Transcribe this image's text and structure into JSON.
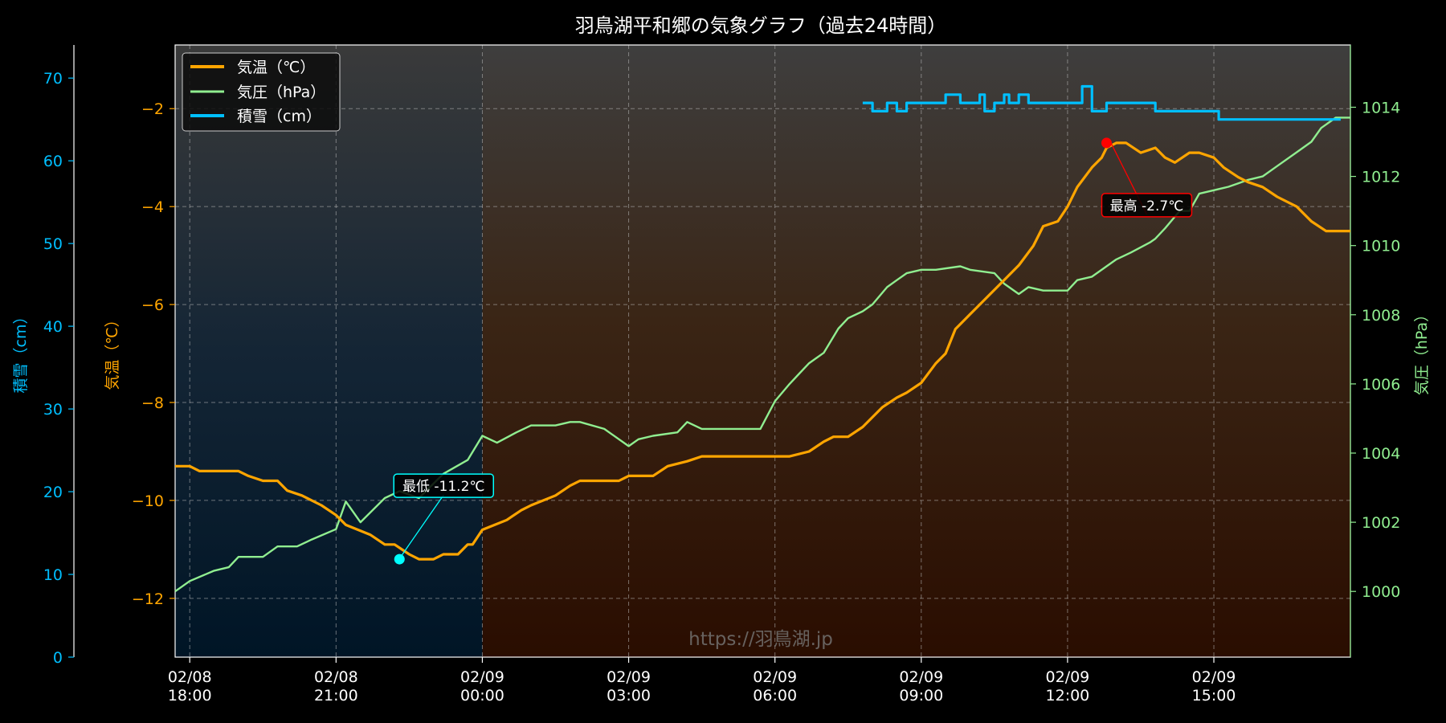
{
  "chart_data": {
    "type": "line",
    "title": "羽鳥湖平和郷の気象グラフ（過去24時間）",
    "watermark": "https://羽鳥湖.jp",
    "colors": {
      "temperature": "#ffa500",
      "pressure": "#90ee90",
      "snow": "#00bfff",
      "min_marker": "#00ffff",
      "max_marker": "#ff0000"
    },
    "x_axis": {
      "range": [
        "02/08 17:42",
        "02/09 17:48"
      ],
      "ticks": [
        {
          "t": "02/08 18:00",
          "date": "02/08",
          "time": "18:00"
        },
        {
          "t": "02/08 21:00",
          "date": "02/08",
          "time": "21:00"
        },
        {
          "t": "02/09 00:00",
          "date": "02/09",
          "time": "00:00"
        },
        {
          "t": "02/09 03:00",
          "date": "02/09",
          "time": "03:00"
        },
        {
          "t": "02/09 06:00",
          "date": "02/09",
          "time": "06:00"
        },
        {
          "t": "02/09 09:00",
          "date": "02/09",
          "time": "09:00"
        },
        {
          "t": "02/09 12:00",
          "date": "02/09",
          "time": "12:00"
        },
        {
          "t": "02/09 15:00",
          "date": "02/09",
          "time": "15:00"
        }
      ]
    },
    "night_shade_until": "02/09 00:00",
    "y_axes": {
      "temperature": {
        "label": "気温（℃）",
        "range": [
          -13.2,
          -0.7
        ],
        "ticks": [
          -12,
          -10,
          -8,
          -6,
          -4,
          -2
        ]
      },
      "pressure": {
        "label": "気圧（hPa）",
        "range": [
          998.1,
          1015.8
        ],
        "ticks": [
          1000,
          1002,
          1004,
          1006,
          1008,
          1010,
          1012,
          1014
        ]
      },
      "snow": {
        "label": "積雪（cm）",
        "range": [
          0,
          74
        ],
        "ticks": [
          0,
          10,
          20,
          30,
          40,
          50,
          60,
          70
        ]
      }
    },
    "grid": true,
    "legend": {
      "position": "top-left",
      "entries": [
        {
          "key": "temperature",
          "label": "気温（℃）"
        },
        {
          "key": "pressure",
          "label": "気圧（hPa）"
        },
        {
          "key": "snow",
          "label": "積雪（cm）"
        }
      ]
    },
    "series": [
      {
        "name": "気温（℃）",
        "axis": "temperature",
        "points": [
          [
            "02/08 17:42",
            -9.3
          ],
          [
            "02/08 18:00",
            -9.3
          ],
          [
            "02/08 18:12",
            -9.4
          ],
          [
            "02/08 18:42",
            -9.4
          ],
          [
            "02/08 19:00",
            -9.4
          ],
          [
            "02/08 19:12",
            -9.5
          ],
          [
            "02/08 19:30",
            -9.6
          ],
          [
            "02/08 19:48",
            -9.6
          ],
          [
            "02/08 20:00",
            -9.8
          ],
          [
            "02/08 20:18",
            -9.9
          ],
          [
            "02/08 20:42",
            -10.1
          ],
          [
            "02/08 21:00",
            -10.3
          ],
          [
            "02/08 21:12",
            -10.5
          ],
          [
            "02/08 21:42",
            -10.7
          ],
          [
            "02/08 22:00",
            -10.9
          ],
          [
            "02/08 22:12",
            -10.9
          ],
          [
            "02/08 22:30",
            -11.1
          ],
          [
            "02/08 22:42",
            -11.2
          ],
          [
            "02/08 23:00",
            -11.2
          ],
          [
            "02/08 23:12",
            -11.1
          ],
          [
            "02/08 23:30",
            -11.1
          ],
          [
            "02/08 23:42",
            -10.9
          ],
          [
            "02/08 23:48",
            -10.9
          ],
          [
            "02/09 00:00",
            -10.6
          ],
          [
            "02/09 00:30",
            -10.4
          ],
          [
            "02/09 00:48",
            -10.2
          ],
          [
            "02/09 01:00",
            -10.1
          ],
          [
            "02/09 01:30",
            -9.9
          ],
          [
            "02/09 01:48",
            -9.7
          ],
          [
            "02/09 02:00",
            -9.6
          ],
          [
            "02/09 02:48",
            -9.6
          ],
          [
            "02/09 03:00",
            -9.5
          ],
          [
            "02/09 03:30",
            -9.5
          ],
          [
            "02/09 03:48",
            -9.3
          ],
          [
            "02/09 04:12",
            -9.2
          ],
          [
            "02/09 04:30",
            -9.1
          ],
          [
            "02/09 05:00",
            -9.1
          ],
          [
            "02/09 05:48",
            -9.1
          ],
          [
            "02/09 06:00",
            -9.1
          ],
          [
            "02/09 06:18",
            -9.1
          ],
          [
            "02/09 06:42",
            -9.0
          ],
          [
            "02/09 07:00",
            -8.8
          ],
          [
            "02/09 07:12",
            -8.7
          ],
          [
            "02/09 07:30",
            -8.7
          ],
          [
            "02/09 07:48",
            -8.5
          ],
          [
            "02/09 08:00",
            -8.3
          ],
          [
            "02/09 08:12",
            -8.1
          ],
          [
            "02/09 08:30",
            -7.9
          ],
          [
            "02/09 08:42",
            -7.8
          ],
          [
            "02/09 09:00",
            -7.6
          ],
          [
            "02/09 09:18",
            -7.2
          ],
          [
            "02/09 09:30",
            -7.0
          ],
          [
            "02/09 09:42",
            -6.5
          ],
          [
            "02/09 09:48",
            -6.4
          ],
          [
            "02/09 10:00",
            -6.2
          ],
          [
            "02/09 10:18",
            -5.9
          ],
          [
            "02/09 10:42",
            -5.5
          ],
          [
            "02/09 11:00",
            -5.2
          ],
          [
            "02/09 11:18",
            -4.8
          ],
          [
            "02/09 11:30",
            -4.4
          ],
          [
            "02/09 11:48",
            -4.3
          ],
          [
            "02/09 12:00",
            -4.0
          ],
          [
            "02/09 12:12",
            -3.6
          ],
          [
            "02/09 12:30",
            -3.2
          ],
          [
            "02/09 12:42",
            -3.0
          ],
          [
            "02/09 12:48",
            -2.8
          ],
          [
            "02/09 13:00",
            -2.7
          ],
          [
            "02/09 13:12",
            -2.7
          ],
          [
            "02/09 13:30",
            -2.9
          ],
          [
            "02/09 13:48",
            -2.8
          ],
          [
            "02/09 14:00",
            -3.0
          ],
          [
            "02/09 14:12",
            -3.1
          ],
          [
            "02/09 14:30",
            -2.9
          ],
          [
            "02/09 14:42",
            -2.9
          ],
          [
            "02/09 15:00",
            -3.0
          ],
          [
            "02/09 15:12",
            -3.2
          ],
          [
            "02/09 15:30",
            -3.4
          ],
          [
            "02/09 15:42",
            -3.5
          ],
          [
            "02/09 16:00",
            -3.6
          ],
          [
            "02/09 16:18",
            -3.8
          ],
          [
            "02/09 16:42",
            -4.0
          ],
          [
            "02/09 17:00",
            -4.3
          ],
          [
            "02/09 17:18",
            -4.5
          ],
          [
            "02/09 17:48",
            -4.5
          ]
        ]
      },
      {
        "name": "気圧（hPa）",
        "axis": "pressure",
        "points": [
          [
            "02/08 17:42",
            1000.0
          ],
          [
            "02/08 18:00",
            1000.3
          ],
          [
            "02/08 18:30",
            1000.6
          ],
          [
            "02/08 18:48",
            1000.7
          ],
          [
            "02/08 19:00",
            1001.0
          ],
          [
            "02/08 19:30",
            1001.0
          ],
          [
            "02/08 19:48",
            1001.3
          ],
          [
            "02/08 20:12",
            1001.3
          ],
          [
            "02/08 20:30",
            1001.5
          ],
          [
            "02/08 21:00",
            1001.8
          ],
          [
            "02/08 21:12",
            1002.6
          ],
          [
            "02/08 21:30",
            1002.0
          ],
          [
            "02/08 22:00",
            1002.7
          ],
          [
            "02/08 22:18",
            1002.9
          ],
          [
            "02/08 22:42",
            1002.7
          ],
          [
            "02/08 23:12",
            1003.4
          ],
          [
            "02/08 23:42",
            1003.8
          ],
          [
            "02/09 00:00",
            1004.5
          ],
          [
            "02/09 00:18",
            1004.3
          ],
          [
            "02/09 00:42",
            1004.6
          ],
          [
            "02/09 01:00",
            1004.8
          ],
          [
            "02/09 01:30",
            1004.8
          ],
          [
            "02/09 01:48",
            1004.9
          ],
          [
            "02/09 02:00",
            1004.9
          ],
          [
            "02/09 02:30",
            1004.7
          ],
          [
            "02/09 03:00",
            1004.2
          ],
          [
            "02/09 03:12",
            1004.4
          ],
          [
            "02/09 03:30",
            1004.5
          ],
          [
            "02/09 04:00",
            1004.6
          ],
          [
            "02/09 04:12",
            1004.9
          ],
          [
            "02/09 04:30",
            1004.7
          ],
          [
            "02/09 05:00",
            1004.7
          ],
          [
            "02/09 05:42",
            1004.7
          ],
          [
            "02/09 06:00",
            1005.5
          ],
          [
            "02/09 06:18",
            1006.0
          ],
          [
            "02/09 06:30",
            1006.3
          ],
          [
            "02/09 06:42",
            1006.6
          ],
          [
            "02/09 07:00",
            1006.9
          ],
          [
            "02/09 07:18",
            1007.6
          ],
          [
            "02/09 07:30",
            1007.9
          ],
          [
            "02/09 07:48",
            1008.1
          ],
          [
            "02/09 08:00",
            1008.3
          ],
          [
            "02/09 08:18",
            1008.8
          ],
          [
            "02/09 08:30",
            1009.0
          ],
          [
            "02/09 08:42",
            1009.2
          ],
          [
            "02/09 09:00",
            1009.3
          ],
          [
            "02/09 09:18",
            1009.3
          ],
          [
            "02/09 09:48",
            1009.4
          ],
          [
            "02/09 10:00",
            1009.3
          ],
          [
            "02/09 10:30",
            1009.2
          ],
          [
            "02/09 10:42",
            1008.9
          ],
          [
            "02/09 11:00",
            1008.6
          ],
          [
            "02/09 11:12",
            1008.8
          ],
          [
            "02/09 11:30",
            1008.7
          ],
          [
            "02/09 11:48",
            1008.7
          ],
          [
            "02/09 12:00",
            1008.7
          ],
          [
            "02/09 12:12",
            1009.0
          ],
          [
            "02/09 12:30",
            1009.1
          ],
          [
            "02/09 13:00",
            1009.6
          ],
          [
            "02/09 13:18",
            1009.8
          ],
          [
            "02/09 13:42",
            1010.1
          ],
          [
            "02/09 13:48",
            1010.2
          ],
          [
            "02/09 14:00",
            1010.5
          ],
          [
            "02/09 14:18",
            1011.0
          ],
          [
            "02/09 14:30",
            1011.0
          ],
          [
            "02/09 14:42",
            1011.5
          ],
          [
            "02/09 15:00",
            1011.6
          ],
          [
            "02/09 15:18",
            1011.7
          ],
          [
            "02/09 15:30",
            1011.8
          ],
          [
            "02/09 15:42",
            1011.9
          ],
          [
            "02/09 16:00",
            1012.0
          ],
          [
            "02/09 16:18",
            1012.3
          ],
          [
            "02/09 16:42",
            1012.7
          ],
          [
            "02/09 17:00",
            1013.0
          ],
          [
            "02/09 17:12",
            1013.4
          ],
          [
            "02/09 17:30",
            1013.7
          ],
          [
            "02/09 17:48",
            1013.7
          ]
        ]
      },
      {
        "name": "積雪（cm）",
        "axis": "snow",
        "step": true,
        "points": [
          [
            "02/09 07:48",
            67.0
          ],
          [
            "02/09 08:00",
            66.0
          ],
          [
            "02/09 08:18",
            67.0
          ],
          [
            "02/09 08:30",
            66.0
          ],
          [
            "02/09 08:42",
            67.0
          ],
          [
            "02/09 09:30",
            68.0
          ],
          [
            "02/09 09:48",
            67.0
          ],
          [
            "02/09 10:12",
            68.0
          ],
          [
            "02/09 10:18",
            66.0
          ],
          [
            "02/09 10:30",
            67.0
          ],
          [
            "02/09 10:42",
            68.0
          ],
          [
            "02/09 10:48",
            67.0
          ],
          [
            "02/09 11:00",
            68.0
          ],
          [
            "02/09 11:12",
            67.0
          ],
          [
            "02/09 12:18",
            69.0
          ],
          [
            "02/09 12:30",
            66.0
          ],
          [
            "02/09 12:48",
            67.0
          ],
          [
            "02/09 13:48",
            66.0
          ],
          [
            "02/09 15:00",
            66.0
          ],
          [
            "02/09 15:06",
            65.0
          ],
          [
            "02/09 17:36",
            65.0
          ]
        ]
      }
    ],
    "annotations": [
      {
        "key": "min",
        "label": "最低 -11.2℃",
        "t": "02/08 22:18",
        "value": -11.2
      },
      {
        "key": "max",
        "label": "最高 -2.7℃",
        "t": "02/09 12:48",
        "value": -2.7
      }
    ]
  }
}
